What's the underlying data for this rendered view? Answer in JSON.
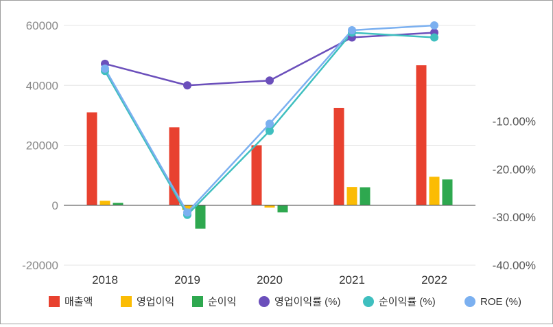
{
  "chart_data": {
    "type": "bar+line",
    "title": "",
    "categories": [
      "2018",
      "2019",
      "2020",
      "2021",
      "2022"
    ],
    "left_axis": {
      "min": -20000,
      "max": 60000,
      "ticks": [
        "60000",
        "40000",
        "20000",
        "0",
        "-20000"
      ],
      "tick_values": [
        60000,
        40000,
        20000,
        0,
        -20000
      ]
    },
    "right_axis": {
      "min": -40,
      "max": 10,
      "ticks": [
        "-10.00%",
        "-20.00%",
        "-30.00%",
        "-40.00%"
      ],
      "tick_values": [
        -10,
        -20,
        -30,
        -40
      ]
    },
    "bar_series": [
      {
        "name": "매출액",
        "color": "#e8412f",
        "values": [
          31000,
          26000,
          20000,
          32500,
          46700
        ]
      },
      {
        "name": "영업이익",
        "color": "#fbbc04",
        "values": [
          1500,
          -1600,
          -800,
          6100,
          9500
        ]
      },
      {
        "name": "순이익",
        "color": "#2ea84f",
        "values": [
          800,
          -7800,
          -2400,
          6000,
          8600
        ]
      }
    ],
    "line_series": [
      {
        "name": "영업이익률 (%)",
        "color": "#6b4fbb",
        "values": [
          2.0,
          -2.5,
          -1.5,
          7.5,
          8.5
        ]
      },
      {
        "name": "순이익률 (%)",
        "color": "#3fbfbf",
        "values": [
          0.5,
          -29.5,
          -12.0,
          8.5,
          7.5
        ]
      },
      {
        "name": "ROE (%)",
        "color": "#7bb0f0",
        "values": [
          1.0,
          -29.0,
          -10.5,
          9.0,
          10.0
        ]
      }
    ],
    "grid": true,
    "legend_position": "bottom"
  }
}
